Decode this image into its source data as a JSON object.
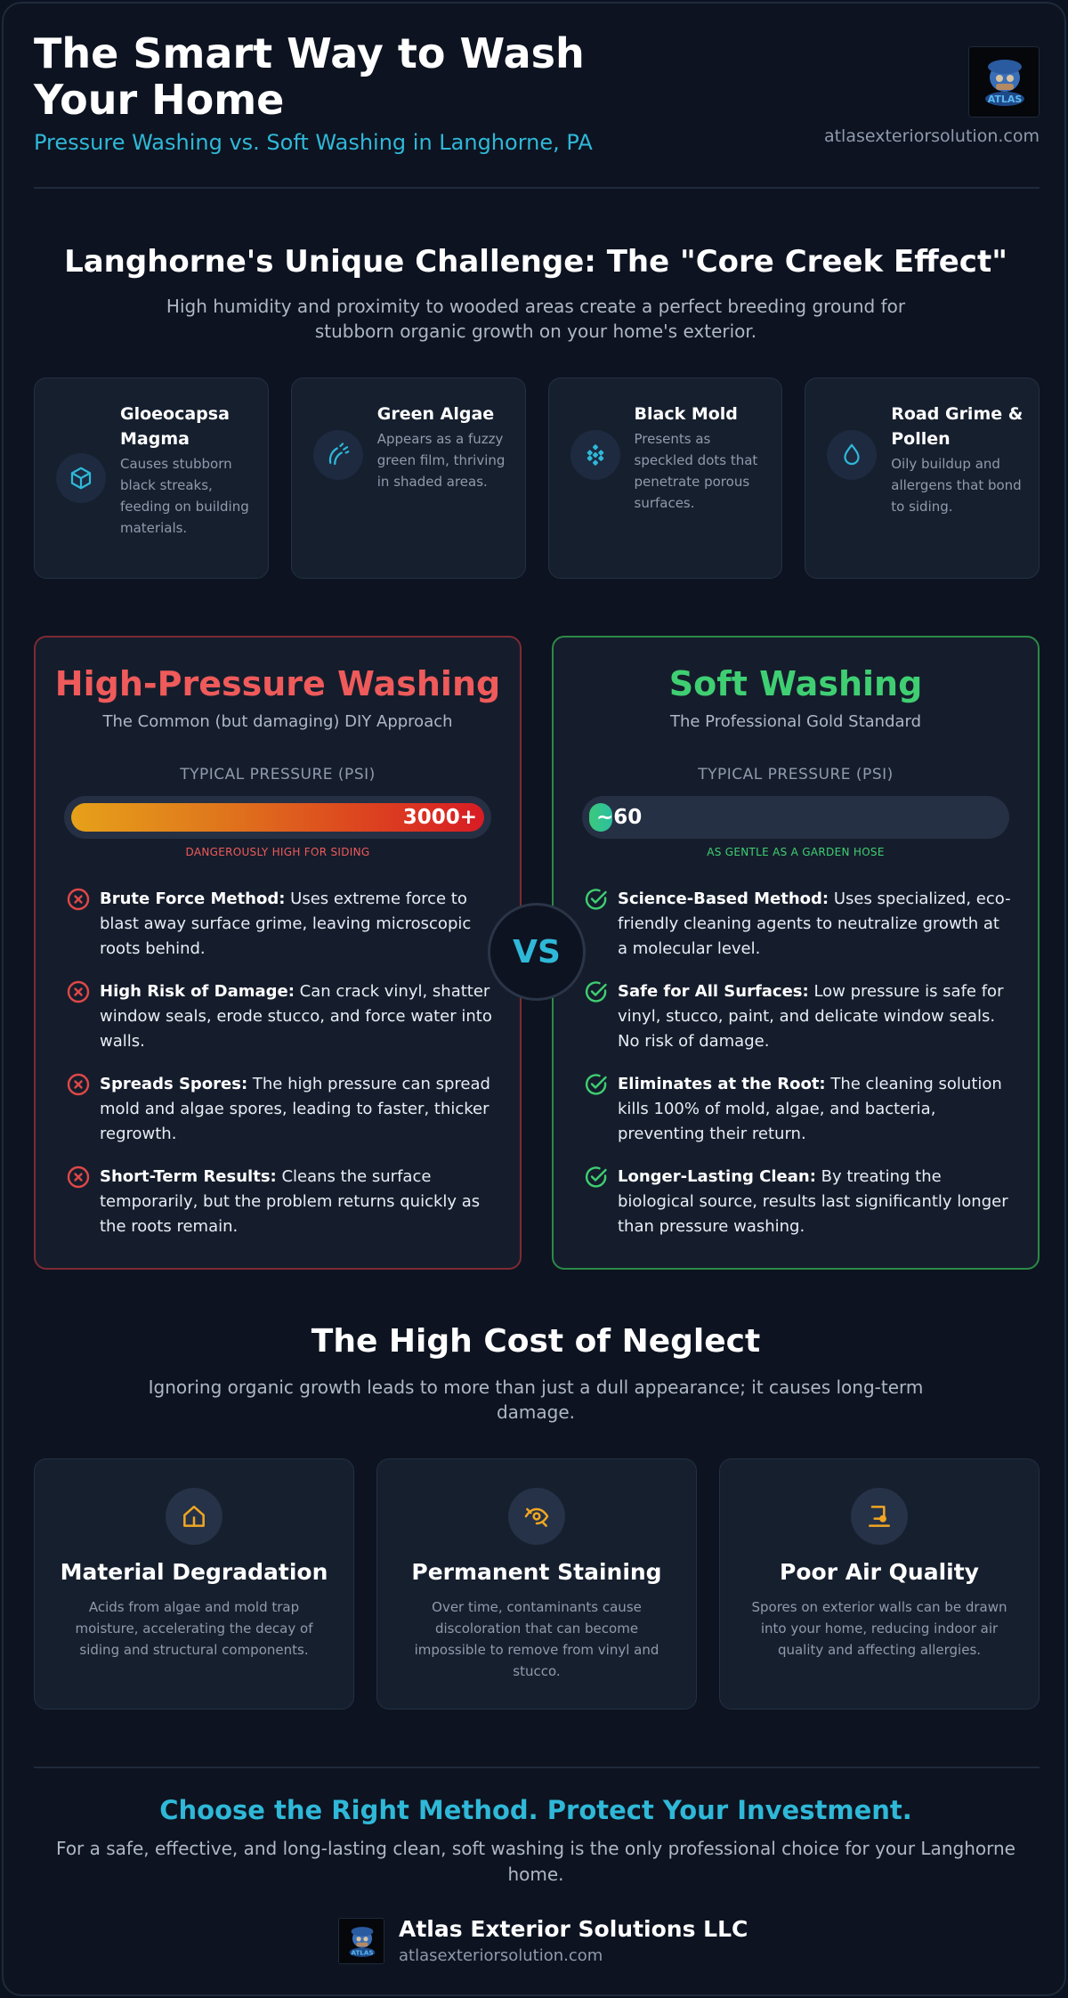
{
  "header": {
    "title": "The Smart Way to Wash Your Home",
    "subtitle": "Pressure Washing vs. Soft Washing in Langhorne, PA",
    "site": "atlasexteriorsolution.com",
    "logo_text": "ATLAS"
  },
  "challenge": {
    "title": "Langhorne's Unique Challenge: The \"Core Creek Effect\"",
    "description": "High humidity and proximity to wooded areas create a perfect breeding ground for stubborn organic growth on your home's exterior.",
    "threats": [
      {
        "name": "Gloeocapsa Magma",
        "description": "Causes stubborn black streaks, feeding on building materials.",
        "icon": "cube-icon"
      },
      {
        "name": "Green Algae",
        "description": "Appears as a fuzzy green film, thriving in shaded areas.",
        "icon": "satellite-icon"
      },
      {
        "name": "Black Mold",
        "description": "Presents as speckled dots that penetrate porous surfaces.",
        "icon": "dots-cluster-icon"
      },
      {
        "name": "Road Grime & Pollen",
        "description": "Oily buildup and allergens that bond to siding.",
        "icon": "droplet-icon"
      }
    ]
  },
  "comparison": {
    "vs_label": "VS",
    "high_pressure": {
      "title": "High-Pressure Washing",
      "subtitle": "The Common (but damaging) DIY Approach",
      "pressure_label": "TYPICAL PRESSURE (PSI)",
      "pressure_value": "3000+",
      "pressure_fill_fraction": 1.0,
      "pressure_note": "DANGEROUSLY HIGH FOR SIDING",
      "points": [
        {
          "bold": "Brute Force Method:",
          "text": " Uses extreme force to blast away surface grime, leaving microscopic roots behind."
        },
        {
          "bold": "High Risk of Damage:",
          "text": " Can crack vinyl, shatter window seals, erode stucco, and force water into walls."
        },
        {
          "bold": "Spreads Spores:",
          "text": " The high pressure can spread mold and algae spores, leading to faster, thicker regrowth."
        },
        {
          "bold": "Short-Term Results:",
          "text": " Cleans the surface temporarily, but the problem returns quickly as the roots remain."
        }
      ],
      "accent": "#ef5a5a"
    },
    "soft_wash": {
      "title": "Soft Washing",
      "subtitle": "The Professional Gold Standard",
      "pressure_label": "TYPICAL PRESSURE (PSI)",
      "pressure_value": "~60",
      "pressure_fill_fraction": 0.02,
      "pressure_note": "AS GENTLE AS A GARDEN HOSE",
      "points": [
        {
          "bold": "Science-Based Method:",
          "text": " Uses specialized, eco-friendly cleaning agents to neutralize growth at a molecular level."
        },
        {
          "bold": "Safe for All Surfaces:",
          "text": " Low pressure is safe for vinyl, stucco, paint, and delicate window seals. No risk of damage."
        },
        {
          "bold": "Eliminates at the Root:",
          "text": " The cleaning solution kills 100% of mold, algae, and bacteria, preventing their return."
        },
        {
          "bold": "Longer-Lasting Clean:",
          "text": " By treating the biological source, results last significantly longer than pressure washing."
        }
      ],
      "accent": "#3fcf72"
    }
  },
  "neglect": {
    "title": "The High Cost of Neglect",
    "description": "Ignoring organic growth leads to more than just a dull appearance; it causes long-term damage.",
    "items": [
      {
        "name": "Material Degradation",
        "description": "Acids from algae and mold trap moisture, accelerating the decay of siding and structural components.",
        "icon": "house-icon"
      },
      {
        "name": "Permanent Staining",
        "description": "Over time, contaminants cause discoloration that can become impossible to remove from vinyl and stucco.",
        "icon": "eye-slash-icon"
      },
      {
        "name": "Poor Air Quality",
        "description": "Spores on exterior walls can be drawn into your home, reducing indoor air quality and affecting allergies.",
        "icon": "air-icon"
      }
    ],
    "accent": "#f0a623"
  },
  "cta": {
    "title": "Choose the Right Method. Protect Your Investment.",
    "description": "For a safe, effective, and long-lasting clean, soft washing is the only professional choice for your Langhorne home."
  },
  "footer": {
    "company": "Atlas Exterior Solutions LLC",
    "site": "atlasexteriorsolution.com"
  }
}
